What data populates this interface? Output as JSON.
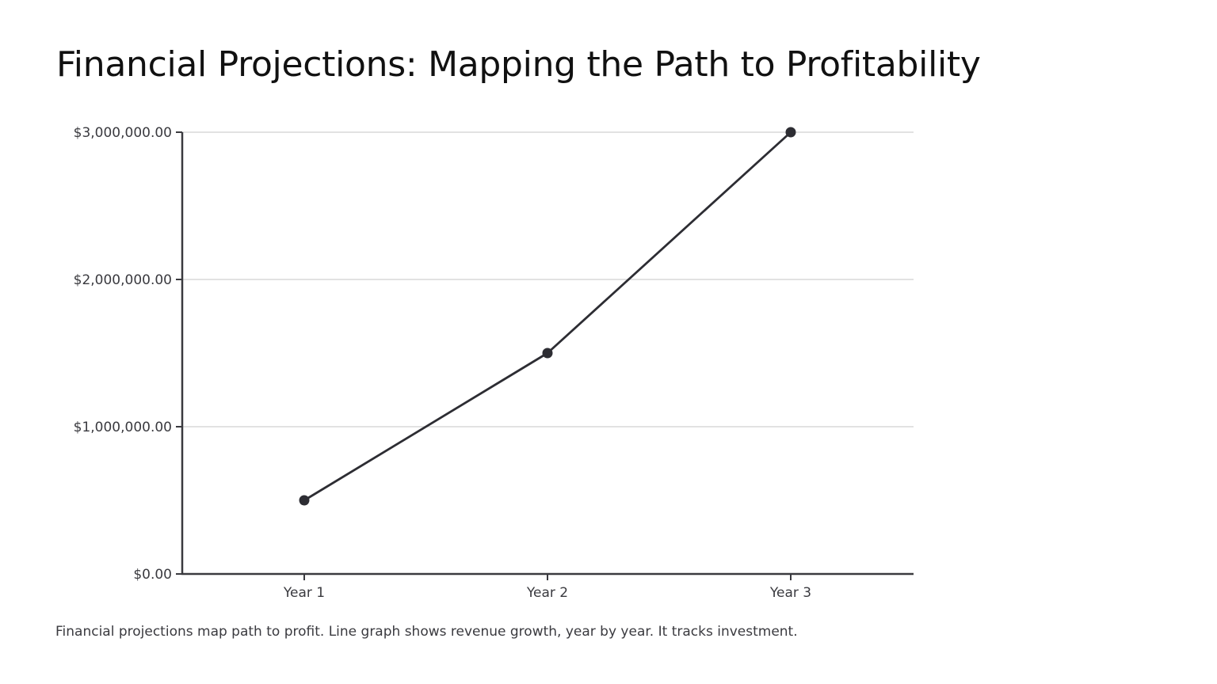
{
  "slide": {
    "title": "Financial Projections: Mapping the Path to Profitability",
    "caption": "Financial projections map path to profit. Line graph shows revenue growth, year by year. It tracks investment."
  },
  "colors": {
    "line": "#2d2d33",
    "axis": "#3a3a3f",
    "grid": "#d9d9d9",
    "text": "#3a3a3f",
    "title": "#111111"
  },
  "chart_data": {
    "type": "line",
    "title": "",
    "xlabel": "",
    "ylabel": "",
    "categories": [
      "Year 1",
      "Year 2",
      "Year 3"
    ],
    "series": [
      {
        "values": [
          500000,
          1500000,
          3000000
        ]
      }
    ],
    "ylim": [
      0,
      3000000
    ],
    "yticks": [
      0,
      1000000,
      2000000,
      3000000
    ],
    "ytick_labels": [
      "$0.00",
      "$1,000,000.00",
      "$2,000,000.00",
      "$3,000,000.00"
    ],
    "grid": "horizontal",
    "legend": "none",
    "markers": true
  }
}
